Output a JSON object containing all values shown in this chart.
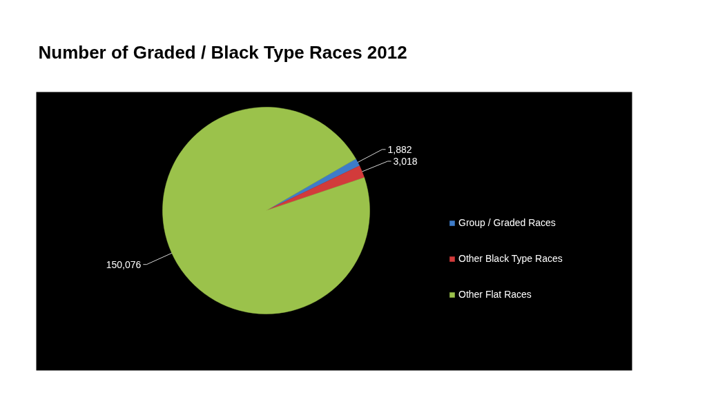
{
  "chart_data": {
    "type": "pie",
    "title": "Number of Graded / Black Type Races 2012",
    "categories": [
      "Group / Graded Races",
      "Other Black Type Races",
      "Other Flat Races"
    ],
    "values": [
      1882,
      3018,
      150076
    ],
    "value_labels": [
      "1,882",
      "3,018",
      "150,076"
    ],
    "colors": [
      "#3e7cc9",
      "#d23b3b",
      "#9bc24b"
    ],
    "legend": "right"
  }
}
